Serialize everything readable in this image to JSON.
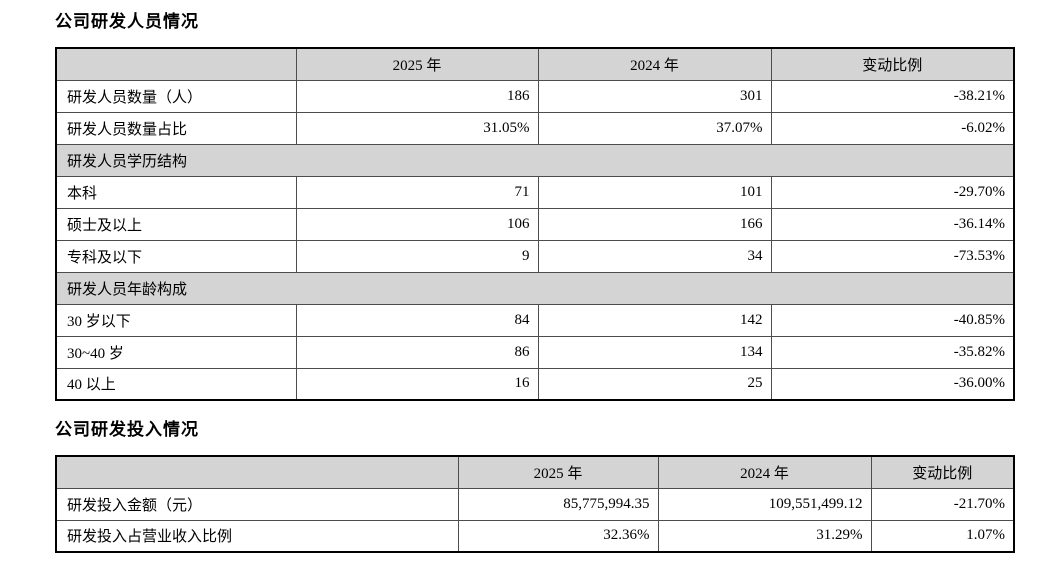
{
  "titles": {
    "table1": "公司研发人员情况",
    "table2": "公司研发投入情况"
  },
  "colors": {
    "section_bg": "#d4d4d4",
    "border_outer": "#000000",
    "border_inner": "#4d4d4d",
    "text": "#000000"
  },
  "table1": {
    "headers": [
      "",
      "2025 年",
      "2024 年",
      "变动比例"
    ],
    "rows": [
      {
        "type": "data",
        "label": "研发人员数量（人）",
        "v2025": "186",
        "v2024": "301",
        "change": "-38.21%"
      },
      {
        "type": "data",
        "label": "研发人员数量占比",
        "v2025": "31.05%",
        "v2024": "37.07%",
        "change": "-6.02%"
      },
      {
        "type": "section",
        "label": "研发人员学历结构"
      },
      {
        "type": "data",
        "label": "本科",
        "v2025": "71",
        "v2024": "101",
        "change": "-29.70%"
      },
      {
        "type": "data",
        "label": "硕士及以上",
        "v2025": "106",
        "v2024": "166",
        "change": "-36.14%"
      },
      {
        "type": "data",
        "label": "专科及以下",
        "v2025": "9",
        "v2024": "34",
        "change": "-73.53%"
      },
      {
        "type": "section",
        "label": "研发人员年龄构成"
      },
      {
        "type": "data",
        "label": "30 岁以下",
        "v2025": "84",
        "v2024": "142",
        "change": "-40.85%"
      },
      {
        "type": "data",
        "label": "30~40 岁",
        "v2025": "86",
        "v2024": "134",
        "change": "-35.82%"
      },
      {
        "type": "data",
        "label": "40 以上",
        "v2025": "16",
        "v2024": "25",
        "change": "-36.00%"
      }
    ]
  },
  "table2": {
    "headers": [
      "",
      "2025 年",
      "2024 年",
      "变动比例"
    ],
    "rows": [
      {
        "type": "data",
        "label": "研发投入金额（元）",
        "v2025": "85,775,994.35",
        "v2024": "109,551,499.12",
        "change": "-21.70%"
      },
      {
        "type": "data",
        "label": "研发投入占营业收入比例",
        "v2025": "32.36%",
        "v2024": "31.29%",
        "change": "1.07%"
      }
    ]
  }
}
